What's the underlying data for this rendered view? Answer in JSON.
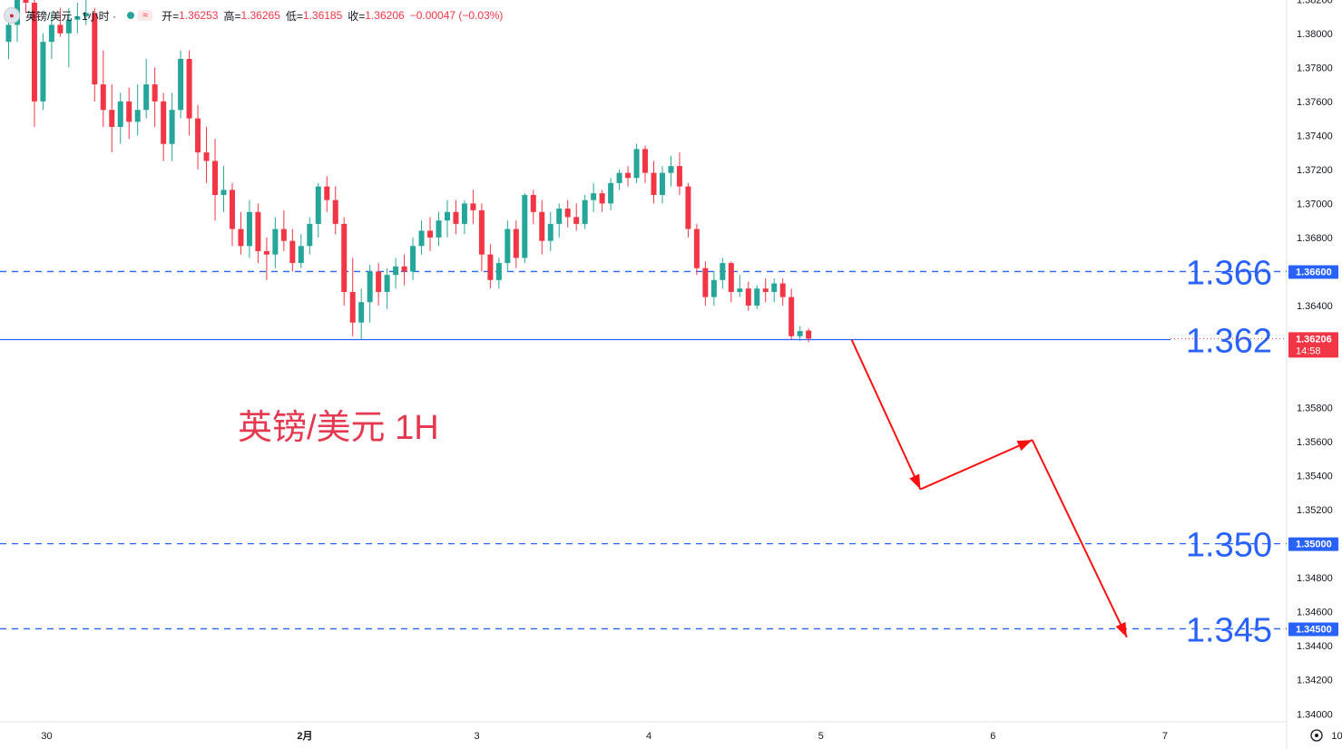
{
  "legend": {
    "symbol": "英镑/美元 · 1小时 ·",
    "open_label": "开=",
    "open": "1.36253",
    "high_label": "高=",
    "high": "1.36265",
    "low_label": "低=",
    "low": "1.36185",
    "close_label": "收=",
    "close": "1.36206",
    "change": "−0.00047 (−0.03%)",
    "flag_icon": "uk-us-flag-icon",
    "indicator_icon": "wave-icon"
  },
  "annotation_title": "英镑/美元 1H",
  "colors": {
    "up": "#26a69a",
    "down": "#f23645",
    "level_line": "#2962ff",
    "arrow": "#ff1010",
    "level_text": "#2962ff"
  },
  "chart_data": {
    "type": "candlestick",
    "timeframe": "1H",
    "y_axis": {
      "range": [
        1.3392,
        1.3823
      ],
      "ticks": [
        "1.38200",
        "1.38000",
        "1.37800",
        "1.37600",
        "1.37400",
        "1.37200",
        "1.37000",
        "1.36800",
        "1.36400",
        "1.35800",
        "1.35600",
        "1.35400",
        "1.35200",
        "1.34800",
        "1.34600",
        "1.34400",
        "1.34200",
        "1.34000"
      ]
    },
    "x_axis": {
      "ticks": [
        {
          "label": "30",
          "bar": 0
        },
        {
          "label": "2月",
          "bar": 30
        },
        {
          "label": "3",
          "bar": 50
        },
        {
          "label": "4",
          "bar": 70
        },
        {
          "label": "5",
          "bar": 90
        },
        {
          "label": "6",
          "bar": 110
        },
        {
          "label": "7",
          "bar": 130
        },
        {
          "label": "10",
          "bar": 150
        }
      ]
    },
    "candles": [
      [
        1.3795,
        1.3815,
        1.3785,
        1.3805
      ],
      [
        1.3805,
        1.3826,
        1.3795,
        1.3821
      ],
      [
        1.3822,
        1.3828,
        1.3812,
        1.3818
      ],
      [
        1.3818,
        1.3822,
        1.3745,
        1.376
      ],
      [
        1.376,
        1.38,
        1.3755,
        1.3795
      ],
      [
        1.3795,
        1.3812,
        1.3785,
        1.3805
      ],
      [
        1.3805,
        1.3815,
        1.3798,
        1.38
      ],
      [
        1.38,
        1.3815,
        1.378,
        1.3808
      ],
      [
        1.3808,
        1.3818,
        1.38,
        1.381
      ],
      [
        1.381,
        1.3828,
        1.3805,
        1.3812
      ],
      [
        1.3812,
        1.3815,
        1.376,
        1.377
      ],
      [
        1.377,
        1.379,
        1.3745,
        1.3755
      ],
      [
        1.3755,
        1.377,
        1.373,
        1.3745
      ],
      [
        1.3745,
        1.3765,
        1.3735,
        1.376
      ],
      [
        1.376,
        1.3768,
        1.3738,
        1.3748
      ],
      [
        1.3748,
        1.377,
        1.374,
        1.3755
      ],
      [
        1.3755,
        1.3785,
        1.375,
        1.377
      ],
      [
        1.377,
        1.378,
        1.3745,
        1.376
      ],
      [
        1.376,
        1.3765,
        1.3725,
        1.3735
      ],
      [
        1.3735,
        1.3765,
        1.3725,
        1.3755
      ],
      [
        1.3755,
        1.379,
        1.375,
        1.3785
      ],
      [
        1.3785,
        1.379,
        1.374,
        1.375
      ],
      [
        1.375,
        1.3758,
        1.372,
        1.373
      ],
      [
        1.373,
        1.3745,
        1.3712,
        1.3725
      ],
      [
        1.3725,
        1.3738,
        1.369,
        1.3705
      ],
      [
        1.3705,
        1.3722,
        1.3695,
        1.3708
      ],
      [
        1.3708,
        1.3712,
        1.3675,
        1.3685
      ],
      [
        1.3685,
        1.3695,
        1.367,
        1.3675
      ],
      [
        1.3675,
        1.3702,
        1.3668,
        1.3695
      ],
      [
        1.3695,
        1.37,
        1.3665,
        1.3672
      ],
      [
        1.3672,
        1.368,
        1.3655,
        1.367
      ],
      [
        1.367,
        1.3692,
        1.3662,
        1.3685
      ],
      [
        1.3685,
        1.3696,
        1.3672,
        1.3678
      ],
      [
        1.3678,
        1.3685,
        1.366,
        1.3665
      ],
      [
        1.3665,
        1.3682,
        1.3662,
        1.3675
      ],
      [
        1.3675,
        1.3692,
        1.367,
        1.3688
      ],
      [
        1.3688,
        1.3712,
        1.368,
        1.371
      ],
      [
        1.371,
        1.3716,
        1.3695,
        1.3702
      ],
      [
        1.3702,
        1.371,
        1.3682,
        1.3688
      ],
      [
        1.3688,
        1.3692,
        1.364,
        1.3648
      ],
      [
        1.3648,
        1.3668,
        1.3622,
        1.363
      ],
      [
        1.363,
        1.365,
        1.362,
        1.3642
      ],
      [
        1.3642,
        1.3664,
        1.363,
        1.366
      ],
      [
        1.366,
        1.3665,
        1.364,
        1.3648
      ],
      [
        1.3648,
        1.3662,
        1.3638,
        1.3658
      ],
      [
        1.3658,
        1.3668,
        1.365,
        1.3663
      ],
      [
        1.3663,
        1.367,
        1.3652,
        1.366
      ],
      [
        1.366,
        1.368,
        1.3655,
        1.3675
      ],
      [
        1.3675,
        1.369,
        1.367,
        1.3684
      ],
      [
        1.3684,
        1.3692,
        1.3672,
        1.368
      ],
      [
        1.368,
        1.3695,
        1.3675,
        1.369
      ],
      [
        1.369,
        1.3702,
        1.368,
        1.3695
      ],
      [
        1.3695,
        1.3702,
        1.3682,
        1.3688
      ],
      [
        1.3688,
        1.3702,
        1.3682,
        1.37
      ],
      [
        1.37,
        1.3708,
        1.3688,
        1.3696
      ],
      [
        1.3696,
        1.37,
        1.366,
        1.367
      ],
      [
        1.367,
        1.3676,
        1.365,
        1.3655
      ],
      [
        1.3655,
        1.3668,
        1.365,
        1.3665
      ],
      [
        1.3665,
        1.369,
        1.366,
        1.3685
      ],
      [
        1.3685,
        1.369,
        1.3662,
        1.3668
      ],
      [
        1.3668,
        1.3706,
        1.3665,
        1.3705
      ],
      [
        1.3705,
        1.3708,
        1.3688,
        1.3695
      ],
      [
        1.3695,
        1.3702,
        1.367,
        1.3678
      ],
      [
        1.3678,
        1.3695,
        1.3672,
        1.3688
      ],
      [
        1.3688,
        1.37,
        1.368,
        1.3697
      ],
      [
        1.3697,
        1.3702,
        1.3686,
        1.3692
      ],
      [
        1.3692,
        1.37,
        1.3684,
        1.3688
      ],
      [
        1.3688,
        1.3705,
        1.3685,
        1.3702
      ],
      [
        1.3702,
        1.3712,
        1.3695,
        1.3706
      ],
      [
        1.3706,
        1.3708,
        1.3695,
        1.37
      ],
      [
        1.37,
        1.3715,
        1.3696,
        1.3712
      ],
      [
        1.3712,
        1.372,
        1.3708,
        1.3718
      ],
      [
        1.3718,
        1.3722,
        1.371,
        1.3715
      ],
      [
        1.3715,
        1.3735,
        1.3712,
        1.3732
      ],
      [
        1.3732,
        1.3734,
        1.3712,
        1.3718
      ],
      [
        1.3718,
        1.3725,
        1.37,
        1.3705
      ],
      [
        1.3705,
        1.3722,
        1.37,
        1.3718
      ],
      [
        1.3718,
        1.3728,
        1.371,
        1.3722
      ],
      [
        1.3722,
        1.373,
        1.3705,
        1.371
      ],
      [
        1.371,
        1.3712,
        1.368,
        1.3685
      ],
      [
        1.3685,
        1.3688,
        1.3658,
        1.3662
      ],
      [
        1.3662,
        1.3666,
        1.364,
        1.3645
      ],
      [
        1.3645,
        1.366,
        1.364,
        1.3655
      ],
      [
        1.3655,
        1.3668,
        1.365,
        1.3665
      ],
      [
        1.3665,
        1.3666,
        1.3642,
        1.3648
      ],
      [
        1.3648,
        1.3658,
        1.3645,
        1.365
      ],
      [
        1.365,
        1.3654,
        1.3637,
        1.364
      ],
      [
        1.364,
        1.3652,
        1.3638,
        1.365
      ],
      [
        1.365,
        1.3656,
        1.3642,
        1.3648
      ],
      [
        1.3648,
        1.3656,
        1.3642,
        1.3653
      ],
      [
        1.3653,
        1.3656,
        1.364,
        1.3645
      ],
      [
        1.3645,
        1.365,
        1.362,
        1.3622
      ],
      [
        1.3622,
        1.3628,
        1.3619,
        1.3625
      ],
      [
        1.36253,
        1.36265,
        1.36185,
        1.36206
      ]
    ],
    "horizontal_levels": [
      {
        "value": 1.366,
        "label": "1.366",
        "axis_label": "1.36600",
        "style": "dashed"
      },
      {
        "value": 1.362,
        "label": "1.362",
        "axis_label": "1.36200",
        "style": "solid"
      },
      {
        "value": 1.35,
        "label": "1.350",
        "axis_label": "1.35000",
        "style": "dashed"
      },
      {
        "value": 1.345,
        "label": "1.345",
        "axis_label": "1.34500",
        "style": "dashed"
      }
    ],
    "current_price": {
      "value": 1.36206,
      "label": "1.36206",
      "countdown": "14:58"
    },
    "projection_path": [
      {
        "bar": 98,
        "price": 1.362
      },
      {
        "bar": 106,
        "price": 1.3532
      },
      {
        "bar": 119,
        "price": 1.3561
      },
      {
        "bar": 130,
        "price": 1.3445
      }
    ]
  }
}
